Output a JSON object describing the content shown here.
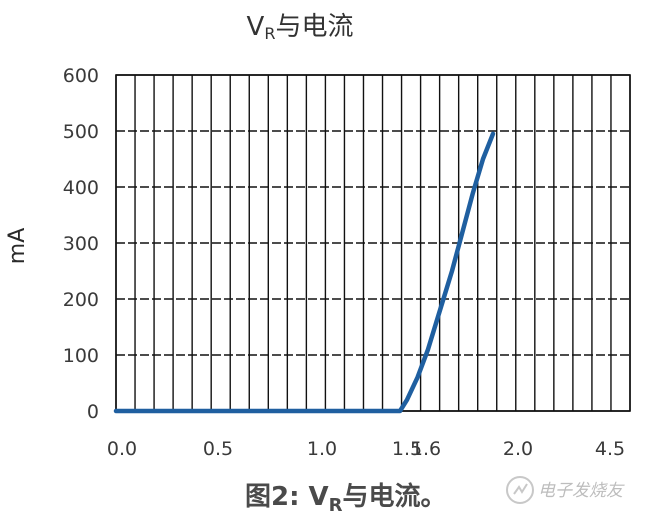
{
  "chart_data": {
    "type": "line",
    "title": "VR与电流",
    "title_main": "V",
    "title_sub": "R",
    "title_rest": "与电流",
    "xlabel": "",
    "ylabel": "mA",
    "x_ticks": [
      "0.0",
      "0.5",
      "1.0",
      "1.5",
      "1.6",
      "2.0",
      "4.5"
    ],
    "y_ticks": [
      "0",
      "100",
      "200",
      "300",
      "400",
      "500",
      "600"
    ],
    "ylim": [
      0,
      600
    ],
    "grid": true,
    "series": [
      {
        "color": "#1f5fa0",
        "points": [
          [
            0.0,
            0
          ],
          [
            0.5,
            0
          ],
          [
            1.0,
            0
          ],
          [
            1.45,
            0
          ],
          [
            1.5,
            20
          ],
          [
            1.55,
            60
          ],
          [
            1.6,
            110
          ],
          [
            1.65,
            180
          ],
          [
            1.7,
            250
          ],
          [
            1.75,
            320
          ],
          [
            1.8,
            390
          ],
          [
            1.85,
            450
          ],
          [
            1.9,
            495
          ]
        ]
      }
    ]
  },
  "caption": {
    "prefix": "图2: V",
    "sub": "R",
    "suffix": "与电流。"
  },
  "watermark": {
    "text": "电子发烧友",
    "icon": "watermark-logo-icon"
  }
}
